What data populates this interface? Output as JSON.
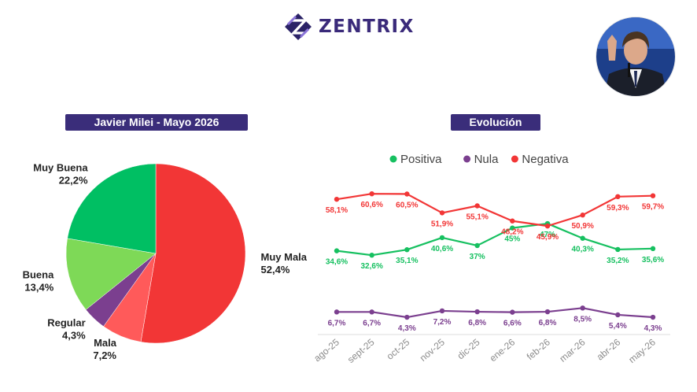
{
  "brand": {
    "name": "ZENTRIX"
  },
  "photo": {
    "subject": "Javier Milei portrait",
    "icon": "person-photo"
  },
  "chart_data": [
    {
      "type": "pie",
      "title": "Javier Milei - Mayo 2026",
      "slices": [
        {
          "label": "Muy Mala",
          "value": 52.4,
          "text": "52,4%",
          "color": "#f23636"
        },
        {
          "label": "Mala",
          "value": 7.2,
          "text": "7,2%",
          "color": "#ff5a5a"
        },
        {
          "label": "Regular",
          "value": 4.3,
          "text": "4,3%",
          "color": "#7b3f8f"
        },
        {
          "label": "Buena",
          "value": 13.4,
          "text": "13,4%",
          "color": "#7ed957"
        },
        {
          "label": "Muy Buena",
          "value": 22.2,
          "text": "22,2%",
          "color": "#00bf63"
        }
      ]
    },
    {
      "type": "line",
      "title": "Evolución",
      "legend_position": "top",
      "grid": false,
      "categories": [
        "ago-25",
        "sept-25",
        "oct-25",
        "nov-25",
        "dic-25",
        "ene-26",
        "feb-26",
        "mar-26",
        "abr-26",
        "may-26"
      ],
      "ylim": [
        0,
        70
      ],
      "series": [
        {
          "name": "Positiva",
          "color": "#16c060",
          "values": [
            34.6,
            32.6,
            35.1,
            40.6,
            37,
            45,
            47,
            40.3,
            35.2,
            35.6
          ],
          "labels": [
            "34,6%",
            "32,6%",
            "35,1%",
            "40,6%",
            "37%",
            "45%",
            "47%",
            "40,3%",
            "35,2%",
            "35,6%"
          ]
        },
        {
          "name": "Nula",
          "color": "#7b3f8f",
          "values": [
            6.7,
            6.7,
            4.3,
            7.2,
            6.8,
            6.6,
            6.8,
            8.5,
            5.4,
            4.3
          ],
          "labels": [
            "6,7%",
            "6,7%",
            "4,3%",
            "7,2%",
            "6,8%",
            "6,6%",
            "6,8%",
            "8,5%",
            "5,4%",
            "4,3%"
          ]
        },
        {
          "name": "Negativa",
          "color": "#f23636",
          "values": [
            58.1,
            60.6,
            60.5,
            51.9,
            55.1,
            48.2,
            45.9,
            50.9,
            59.3,
            59.7
          ],
          "labels": [
            "58,1%",
            "60,6%",
            "60,5%",
            "51,9%",
            "55,1%",
            "48,2%",
            "45,9%",
            "50,9%",
            "59,3%",
            "59,7%"
          ]
        }
      ]
    }
  ]
}
